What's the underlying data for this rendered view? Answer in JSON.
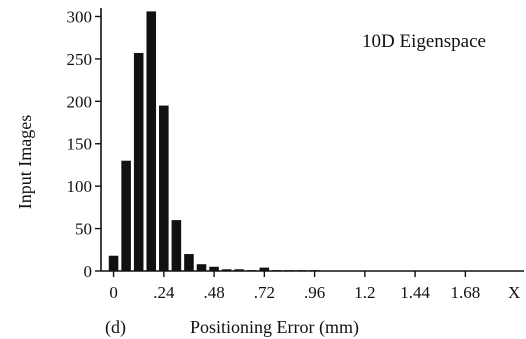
{
  "chart_data": {
    "type": "bar",
    "title": "10D Eigenspace",
    "panel_label": "(d)",
    "xlabel": "Positioning Error (mm)",
    "ylabel": "Input Images",
    "x_end_label": "X",
    "xlim": [
      -0.06,
      1.96
    ],
    "ylim": [
      0,
      310
    ],
    "bin_width": 0.06,
    "x": [
      0,
      0.06,
      0.12,
      0.18,
      0.24,
      0.3,
      0.36,
      0.42,
      0.48,
      0.54,
      0.6,
      0.66,
      0.72,
      0.78,
      0.84,
      0.9,
      0.96
    ],
    "values": [
      18,
      130,
      257,
      306,
      195,
      60,
      20,
      8,
      5,
      2,
      2,
      1,
      4,
      1,
      1,
      1,
      1
    ],
    "x_ticks": [
      {
        "value": 0,
        "label": "0"
      },
      {
        "value": 0.24,
        "label": ".24"
      },
      {
        "value": 0.48,
        "label": ".48"
      },
      {
        "value": 0.72,
        "label": ".72"
      },
      {
        "value": 0.96,
        "label": ".96"
      },
      {
        "value": 1.2,
        "label": "1.2"
      },
      {
        "value": 1.44,
        "label": "1.44"
      },
      {
        "value": 1.68,
        "label": "1.68"
      }
    ],
    "y_ticks": [
      {
        "value": 0,
        "label": "0"
      },
      {
        "value": 50,
        "label": "50"
      },
      {
        "value": 100,
        "label": "100"
      },
      {
        "value": 150,
        "label": "150"
      },
      {
        "value": 200,
        "label": "200"
      },
      {
        "value": 250,
        "label": "250"
      },
      {
        "value": 300,
        "label": "300"
      }
    ],
    "grid": false
  }
}
